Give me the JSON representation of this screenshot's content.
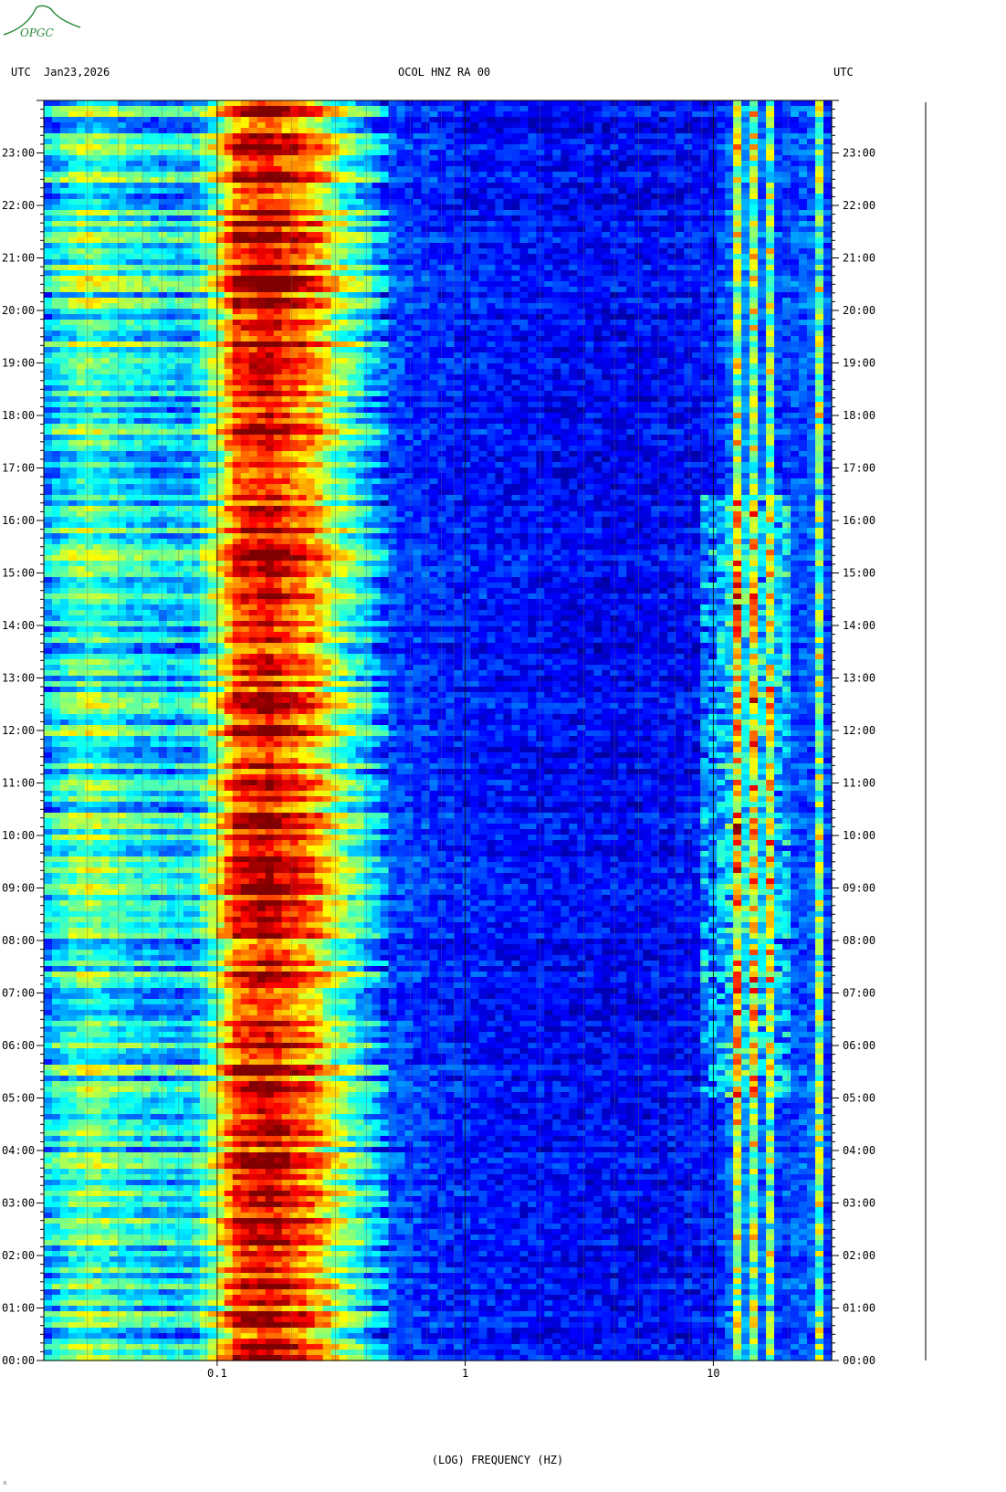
{
  "header": {
    "left_zone": "UTC",
    "date": "Jan23,2026",
    "station": "OCOL HNZ RA 00",
    "right_zone": "UTC"
  },
  "logo": {
    "text": "OPGC",
    "color": "#2a8a3a"
  },
  "footer": {
    "mark": "˄"
  },
  "chart_data": {
    "type": "heatmap",
    "title": "OCOL HNZ RA 00",
    "xlabel": "(LOG) FREQUENCY (HZ)",
    "x_scale": "log",
    "x_range": [
      0.02,
      30
    ],
    "x_ticks": [
      {
        "value": 0.1,
        "label": "0.1"
      },
      {
        "value": 1,
        "label": "1"
      },
      {
        "value": 10,
        "label": "10"
      }
    ],
    "y_range_hours": [
      0,
      24
    ],
    "y_tick_labels": [
      "00:00",
      "01:00",
      "02:00",
      "03:00",
      "04:00",
      "05:00",
      "06:00",
      "07:00",
      "08:00",
      "09:00",
      "10:00",
      "11:00",
      "12:00",
      "13:00",
      "14:00",
      "15:00",
      "16:00",
      "17:00",
      "18:00",
      "19:00",
      "20:00",
      "21:00",
      "22:00",
      "23:00"
    ],
    "colormap": [
      "#00007f",
      "#0000ff",
      "#0080ff",
      "#00ffff",
      "#80ff80",
      "#ffff00",
      "#ff8000",
      "#ff0000",
      "#7f0000"
    ],
    "profile": [
      {
        "freq": 0.02,
        "level": 0.3
      },
      {
        "freq": 0.025,
        "level": 0.42
      },
      {
        "freq": 0.03,
        "level": 0.48
      },
      {
        "freq": 0.045,
        "level": 0.38
      },
      {
        "freq": 0.06,
        "level": 0.34
      },
      {
        "freq": 0.08,
        "level": 0.33
      },
      {
        "freq": 0.1,
        "level": 0.55
      },
      {
        "freq": 0.12,
        "level": 0.83
      },
      {
        "freq": 0.16,
        "level": 0.92
      },
      {
        "freq": 0.2,
        "level": 0.82
      },
      {
        "freq": 0.25,
        "level": 0.72
      },
      {
        "freq": 0.3,
        "level": 0.55
      },
      {
        "freq": 0.4,
        "level": 0.36
      },
      {
        "freq": 0.5,
        "level": 0.2
      },
      {
        "freq": 0.8,
        "level": 0.16
      },
      {
        "freq": 1,
        "level": 0.15
      },
      {
        "freq": 2,
        "level": 0.13
      },
      {
        "freq": 5,
        "level": 0.12
      },
      {
        "freq": 10,
        "level": 0.14
      },
      {
        "freq": 13,
        "level": 0.28
      },
      {
        "freq": 18,
        "level": 0.18
      },
      {
        "freq": 25,
        "level": 0.22
      },
      {
        "freq": 30,
        "level": 0.18
      }
    ],
    "spectral_lines_hz": [
      12.5,
      14.2,
      16.5,
      25.5,
      27.5
    ],
    "grid": true
  }
}
